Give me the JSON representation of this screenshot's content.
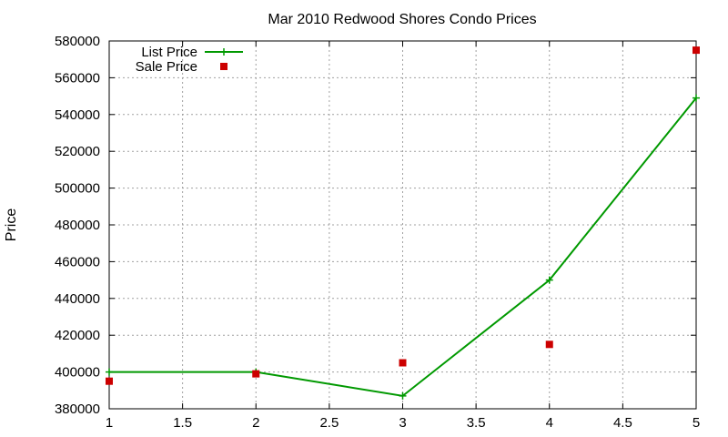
{
  "chart_data": {
    "type": "line",
    "title": "Mar 2010 Redwood Shores Condo Prices",
    "xlabel": "",
    "ylabel": "Price",
    "xlim": [
      1,
      5
    ],
    "ylim": [
      380000,
      580000
    ],
    "x_ticks": [
      "1",
      "1.5",
      "2",
      "2.5",
      "3",
      "3.5",
      "4",
      "4.5",
      "5"
    ],
    "y_ticks": [
      "380000",
      "400000",
      "420000",
      "440000",
      "460000",
      "480000",
      "500000",
      "520000",
      "540000",
      "560000",
      "580000"
    ],
    "grid": true,
    "legend_position": "top-left",
    "series": [
      {
        "name": "List Price",
        "style": "linespoints",
        "marker": "plus",
        "color": "#009900",
        "x": [
          1,
          2,
          3,
          4,
          5
        ],
        "y": [
          400000,
          400000,
          387000,
          450000,
          549000
        ]
      },
      {
        "name": "Sale Price",
        "style": "points",
        "marker": "square",
        "color": "#cc0000",
        "x": [
          1,
          2,
          3,
          4,
          5
        ],
        "y": [
          395000,
          399000,
          405000,
          415000,
          575000
        ]
      }
    ]
  }
}
